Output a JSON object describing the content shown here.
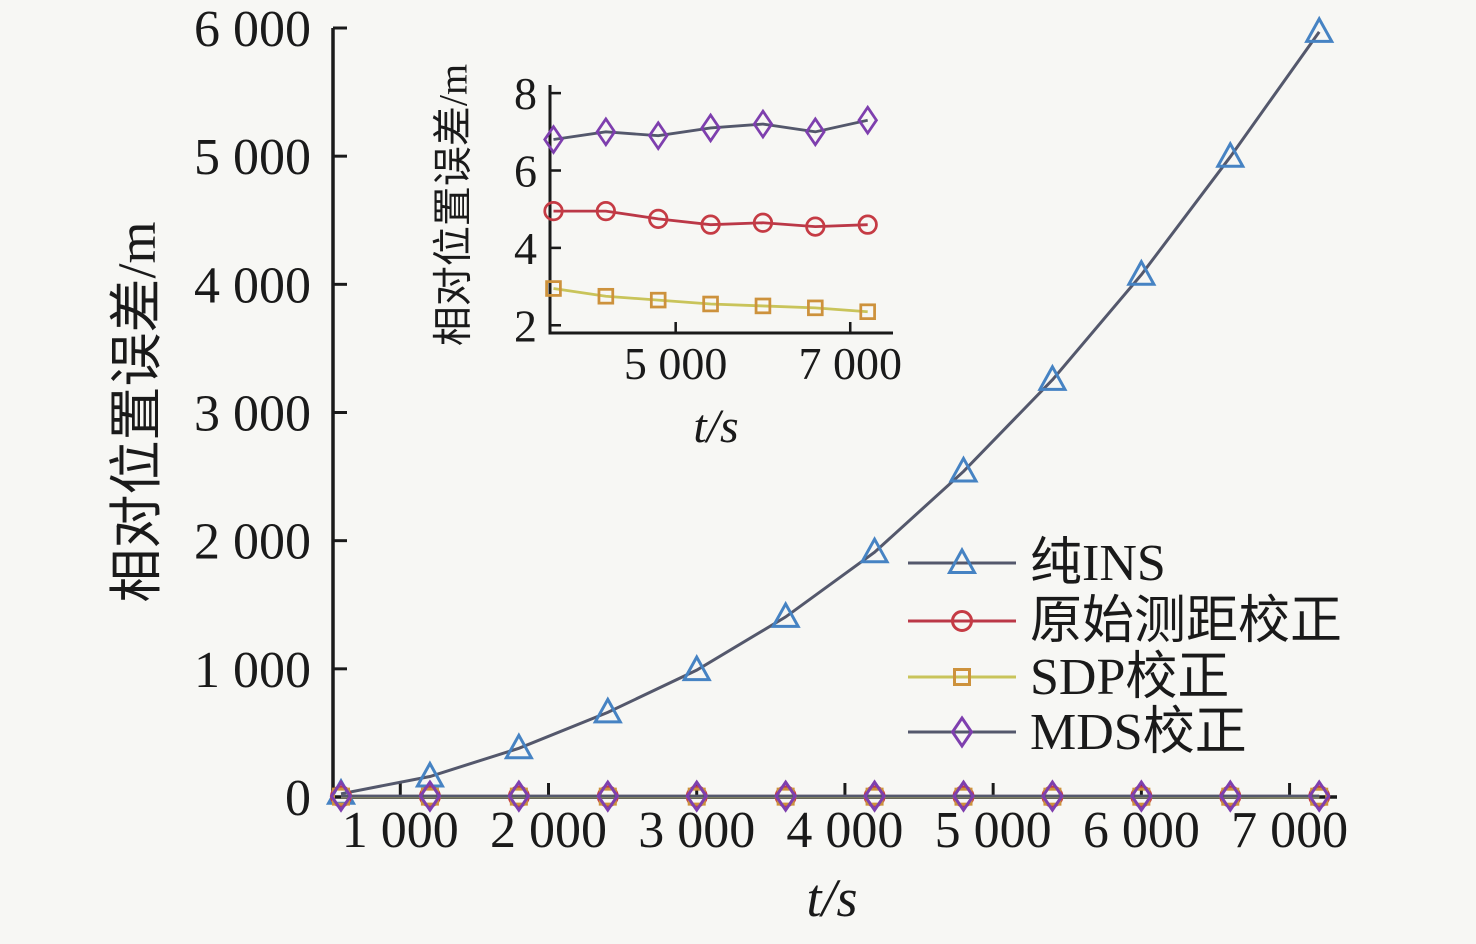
{
  "figure": {
    "background": "#f7f7f4",
    "axis_color": "#1a1a1a",
    "text_color": "#1a1a1a"
  },
  "chart_data": [
    {
      "id": "main",
      "type": "line",
      "title": "",
      "xlabel": "t/s",
      "ylabel": "相对位置误差/m",
      "xlim": [
        546,
        7320
      ],
      "ylim": [
        0,
        6000
      ],
      "grid": false,
      "legend_position": "inside-right-middle",
      "x": [
        600,
        1200,
        1800,
        2400,
        3000,
        3600,
        4200,
        4800,
        5400,
        6000,
        6600,
        7200
      ],
      "xticks": {
        "values": [
          1000,
          2000,
          3000,
          4000,
          5000,
          6000,
          7000
        ],
        "labels": [
          "1 000",
          "2 000",
          "3 000",
          "4 000",
          "5 000",
          "6 000",
          "7 000"
        ]
      },
      "yticks": {
        "values": [
          0,
          1000,
          2000,
          3000,
          4000,
          5000,
          6000
        ],
        "labels": [
          "0",
          "1 000",
          "2 000",
          "3 000",
          "4 000",
          "5 000",
          "6 000"
        ]
      },
      "series": [
        {
          "name": "纯INS",
          "slug": "pure-ins",
          "marker": "triangle",
          "marker_color": "#4683c3",
          "line_color": "#54586c",
          "values": [
            25,
            160,
            380,
            660,
            990,
            1405,
            1910,
            2540,
            3255,
            4075,
            4995,
            5970
          ]
        },
        {
          "name": "原始测距校正",
          "slug": "raw-ranging-correction",
          "marker": "circle",
          "marker_color": "#c53b44",
          "line_color": "#bb3847",
          "values": [
            4.9,
            4.9,
            4.95,
            4.95,
            4.95,
            4.95,
            4.95,
            4.75,
            4.6,
            4.65,
            4.55,
            4.6
          ]
        },
        {
          "name": "SDP校正",
          "slug": "sdp-correction",
          "marker": "square",
          "marker_color": "#cd923c",
          "line_color": "#c9c45a",
          "values": [
            3.0,
            3.0,
            3.0,
            2.95,
            2.95,
            2.95,
            2.75,
            2.65,
            2.55,
            2.5,
            2.45,
            2.35
          ]
        },
        {
          "name": "MDS校正",
          "slug": "mds-correction",
          "marker": "diamond",
          "marker_color": "#7e3fae",
          "line_color": "#54586c",
          "values": [
            6.8,
            6.8,
            6.8,
            6.8,
            6.8,
            6.8,
            7.0,
            6.9,
            7.1,
            7.2,
            7.0,
            7.3
          ]
        }
      ]
    },
    {
      "id": "inset",
      "type": "line",
      "title": "",
      "xlabel": "t/s",
      "ylabel": "相对位置误差/m",
      "xlim": [
        3560,
        7490
      ],
      "ylim": [
        1.8,
        8.21
      ],
      "grid": false,
      "legend_position": "none",
      "x": [
        3600,
        4200,
        4800,
        5400,
        6000,
        6600,
        7200
      ],
      "xticks": {
        "values": [
          5000,
          7000
        ],
        "labels": [
          "5 000",
          "7 000"
        ]
      },
      "yticks": {
        "values": [
          2,
          4,
          6,
          8
        ],
        "labels": [
          "2",
          "4",
          "6",
          "8"
        ]
      },
      "series": [
        {
          "name": "原始测距校正",
          "slug": "raw-ranging-correction",
          "marker": "circle",
          "marker_color": "#c53b44",
          "line_color": "#bb3847",
          "values": [
            4.95,
            4.95,
            4.75,
            4.6,
            4.65,
            4.55,
            4.6
          ]
        },
        {
          "name": "SDP校正",
          "slug": "sdp-correction",
          "marker": "square",
          "marker_color": "#cd923c",
          "line_color": "#c9c45a",
          "values": [
            2.95,
            2.75,
            2.65,
            2.55,
            2.5,
            2.45,
            2.35
          ]
        },
        {
          "name": "MDS校正",
          "slug": "mds-correction",
          "marker": "diamond",
          "marker_color": "#7e3fae",
          "line_color": "#54586c",
          "values": [
            6.8,
            7.0,
            6.9,
            7.1,
            7.2,
            7.0,
            7.3
          ]
        }
      ]
    }
  ]
}
